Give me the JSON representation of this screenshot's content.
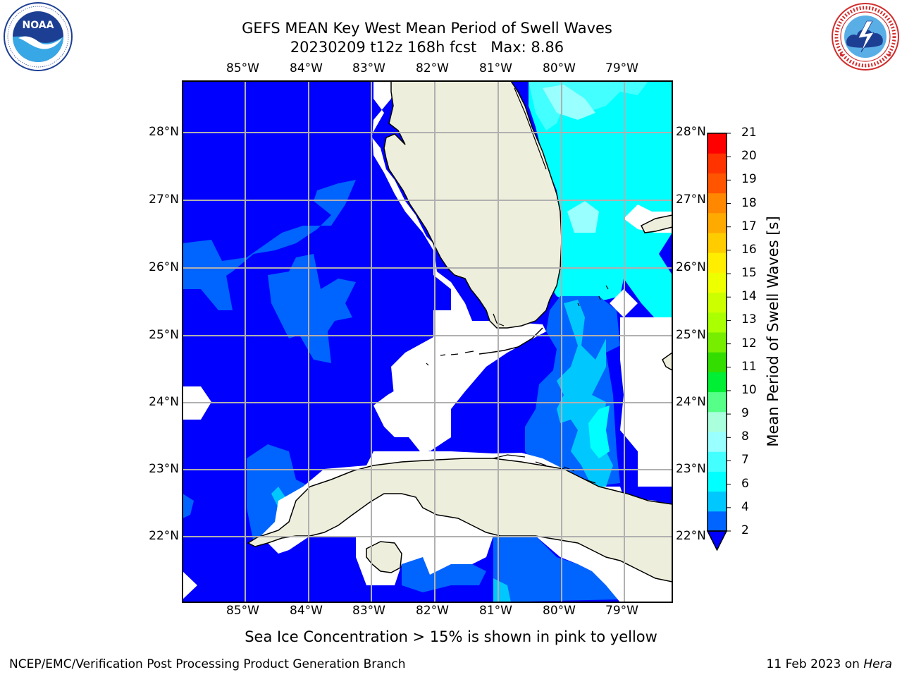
{
  "title": {
    "line1": "GEFS MEAN Key West Mean Period of Swell Waves",
    "line2": "20230209 t12z 168h fcst   Max: 8.86"
  },
  "logos": {
    "noaa": {
      "text": "NOAA",
      "ring_text": "NATIONAL OCEANIC AND ATMOSPHERIC ADMINISTRATION · U.S. DEPARTMENT OF COMMERCE"
    },
    "nws": {
      "ring_text": "NATIONAL WEATHER SERVICE"
    }
  },
  "map": {
    "lon_labels": [
      "85°W",
      "84°W",
      "83°W",
      "82°W",
      "81°W",
      "80°W",
      "79°W"
    ],
    "lat_labels": [
      "28°N",
      "27°N",
      "26°N",
      "25°N",
      "24°N",
      "23°N",
      "22°N"
    ],
    "extent": {
      "lon_min": -86.0,
      "lon_max": -78.25,
      "lat_min": 21.0,
      "lat_max": 28.75
    },
    "land_color": "#eeeedc",
    "grid_color": "#b0b0b0"
  },
  "colorbar": {
    "title": "Mean Period of Swell Waves [s]",
    "levels": [
      "2",
      "4",
      "6",
      "7",
      "8",
      "9",
      "10",
      "11",
      "12",
      "13",
      "14",
      "15",
      "16",
      "17",
      "18",
      "19",
      "20",
      "21"
    ],
    "colors": [
      "#0064ff",
      "#00c8ff",
      "#00ffff",
      "#44ffff",
      "#99ffff",
      "#aaffdd",
      "#55ff88",
      "#00ee33",
      "#33dd00",
      "#77ee00",
      "#aaff00",
      "#ccff00",
      "#eeff00",
      "#ffee00",
      "#ffcc00",
      "#ffaa00",
      "#ff8800",
      "#ff5500",
      "#ff3300",
      "#ff0000"
    ],
    "under_color": "#0000ff"
  },
  "chart_data": {
    "type": "heatmap",
    "variable": "Mean Period of Swell Waves",
    "units": "s",
    "max_value": 8.86,
    "regions": [
      {
        "area": "Gulf of Mexico",
        "value_range": [
          2,
          4
        ]
      },
      {
        "area": "Atlantic east of Florida",
        "value_range": [
          6,
          8
        ]
      },
      {
        "area": "Florida Straits",
        "value_range": [
          2,
          6
        ]
      }
    ]
  },
  "caption": "Sea Ice Concentration > 15% is shown in pink to yellow",
  "footer": {
    "left": "NCEP/EMC/Verification Post Processing Product Generation Branch",
    "right_prefix": "11 Feb 2023 on ",
    "right_host": "Hera"
  }
}
